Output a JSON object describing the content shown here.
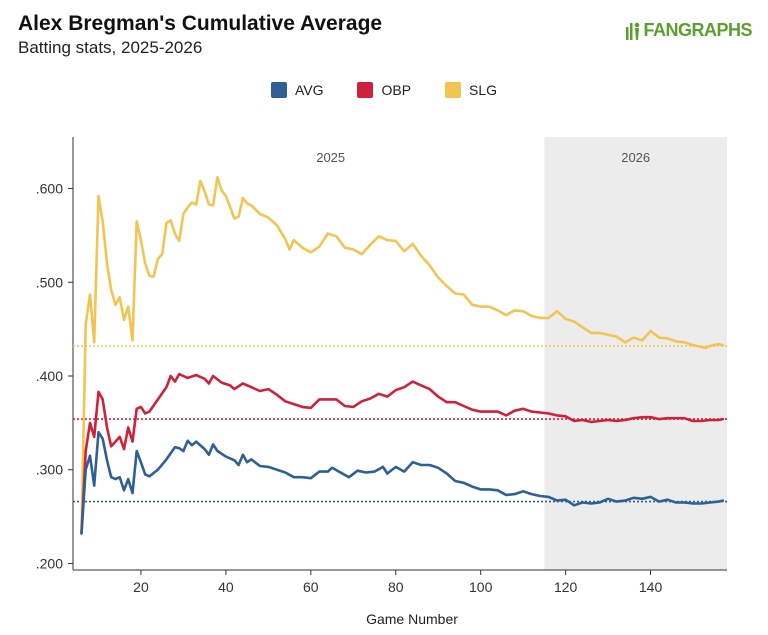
{
  "header": {
    "title": "Alex Bregman's Cumulative Average",
    "subtitle": "Batting stats, 2025-2026",
    "brand": "FANGRAPHS"
  },
  "colors": {
    "AVG": "#2e6095",
    "OBP": "#d0213a",
    "SLG": "#f4c452",
    "season_shade": "#ececec",
    "axis": "#333333",
    "text": "#444444"
  },
  "chart_data": {
    "type": "line",
    "title": "Alex Bregman's Cumulative Average",
    "subtitle": "Batting stats, 2025-2026",
    "xlabel": "Game Number",
    "ylabel": "",
    "xlim": [
      4,
      158
    ],
    "ylim": [
      0.193,
      0.655
    ],
    "x_ticks": [
      20,
      40,
      60,
      80,
      100,
      120,
      140
    ],
    "y_ticks": [
      0.2,
      0.3,
      0.4,
      0.5,
      0.6
    ],
    "y_tick_labels": [
      ".200",
      ".300",
      ".400",
      ".500",
      ".600"
    ],
    "season_labels": [
      {
        "label": "2025",
        "from": 4,
        "to": 115
      },
      {
        "label": "2026",
        "from": 115,
        "to": 157
      }
    ],
    "legend": [
      "AVG",
      "OBP",
      "SLG"
    ],
    "legend_position": "top-center",
    "series": [
      {
        "name": "AVG",
        "reference": 0.266,
        "points": [
          [
            6,
            0.232
          ],
          [
            7,
            0.3
          ],
          [
            8,
            0.315
          ],
          [
            9,
            0.283
          ],
          [
            10,
            0.34
          ],
          [
            11,
            0.333
          ],
          [
            12,
            0.31
          ],
          [
            13,
            0.292
          ],
          [
            14,
            0.29
          ],
          [
            15,
            0.292
          ],
          [
            16,
            0.278
          ],
          [
            17,
            0.29
          ],
          [
            18,
            0.275
          ],
          [
            19,
            0.32
          ],
          [
            20,
            0.308
          ],
          [
            21,
            0.295
          ],
          [
            22,
            0.293
          ],
          [
            24,
            0.3
          ],
          [
            26,
            0.311
          ],
          [
            28,
            0.324
          ],
          [
            29,
            0.323
          ],
          [
            30,
            0.32
          ],
          [
            31,
            0.331
          ],
          [
            32,
            0.326
          ],
          [
            33,
            0.33
          ],
          [
            35,
            0.322
          ],
          [
            36,
            0.316
          ],
          [
            37,
            0.327
          ],
          [
            38,
            0.32
          ],
          [
            40,
            0.314
          ],
          [
            42,
            0.31
          ],
          [
            43,
            0.305
          ],
          [
            44,
            0.316
          ],
          [
            45,
            0.308
          ],
          [
            46,
            0.311
          ],
          [
            48,
            0.304
          ],
          [
            50,
            0.303
          ],
          [
            52,
            0.3
          ],
          [
            54,
            0.297
          ],
          [
            56,
            0.292
          ],
          [
            58,
            0.292
          ],
          [
            60,
            0.291
          ],
          [
            62,
            0.298
          ],
          [
            64,
            0.298
          ],
          [
            65,
            0.302
          ],
          [
            67,
            0.297
          ],
          [
            69,
            0.292
          ],
          [
            71,
            0.299
          ],
          [
            73,
            0.297
          ],
          [
            75,
            0.298
          ],
          [
            77,
            0.303
          ],
          [
            78,
            0.296
          ],
          [
            80,
            0.303
          ],
          [
            82,
            0.298
          ],
          [
            84,
            0.308
          ],
          [
            86,
            0.305
          ],
          [
            88,
            0.305
          ],
          [
            90,
            0.302
          ],
          [
            92,
            0.296
          ],
          [
            94,
            0.288
          ],
          [
            96,
            0.286
          ],
          [
            98,
            0.282
          ],
          [
            100,
            0.279
          ],
          [
            102,
            0.279
          ],
          [
            104,
            0.278
          ],
          [
            106,
            0.273
          ],
          [
            108,
            0.274
          ],
          [
            110,
            0.277
          ],
          [
            112,
            0.274
          ],
          [
            114,
            0.272
          ],
          [
            116,
            0.271
          ],
          [
            118,
            0.267
          ],
          [
            120,
            0.268
          ],
          [
            122,
            0.262
          ],
          [
            124,
            0.265
          ],
          [
            126,
            0.264
          ],
          [
            128,
            0.265
          ],
          [
            130,
            0.269
          ],
          [
            132,
            0.266
          ],
          [
            134,
            0.267
          ],
          [
            136,
            0.27
          ],
          [
            138,
            0.269
          ],
          [
            140,
            0.271
          ],
          [
            142,
            0.266
          ],
          [
            144,
            0.268
          ],
          [
            146,
            0.265
          ],
          [
            148,
            0.265
          ],
          [
            150,
            0.264
          ],
          [
            152,
            0.264
          ],
          [
            154,
            0.265
          ],
          [
            156,
            0.266
          ],
          [
            157,
            0.267
          ]
        ]
      },
      {
        "name": "OBP",
        "reference": 0.354,
        "points": [
          [
            6,
            0.232
          ],
          [
            7,
            0.32
          ],
          [
            8,
            0.35
          ],
          [
            9,
            0.335
          ],
          [
            10,
            0.383
          ],
          [
            11,
            0.375
          ],
          [
            12,
            0.345
          ],
          [
            13,
            0.325
          ],
          [
            14,
            0.33
          ],
          [
            15,
            0.335
          ],
          [
            16,
            0.322
          ],
          [
            17,
            0.345
          ],
          [
            18,
            0.33
          ],
          [
            19,
            0.365
          ],
          [
            20,
            0.367
          ],
          [
            21,
            0.36
          ],
          [
            22,
            0.362
          ],
          [
            24,
            0.375
          ],
          [
            26,
            0.388
          ],
          [
            27,
            0.4
          ],
          [
            28,
            0.394
          ],
          [
            29,
            0.402
          ],
          [
            30,
            0.4
          ],
          [
            31,
            0.398
          ],
          [
            33,
            0.401
          ],
          [
            35,
            0.397
          ],
          [
            36,
            0.392
          ],
          [
            37,
            0.4
          ],
          [
            39,
            0.393
          ],
          [
            41,
            0.39
          ],
          [
            42,
            0.386
          ],
          [
            44,
            0.392
          ],
          [
            46,
            0.388
          ],
          [
            48,
            0.384
          ],
          [
            50,
            0.386
          ],
          [
            52,
            0.38
          ],
          [
            54,
            0.373
          ],
          [
            56,
            0.37
          ],
          [
            58,
            0.367
          ],
          [
            60,
            0.366
          ],
          [
            62,
            0.375
          ],
          [
            64,
            0.375
          ],
          [
            66,
            0.375
          ],
          [
            68,
            0.368
          ],
          [
            70,
            0.367
          ],
          [
            72,
            0.373
          ],
          [
            74,
            0.376
          ],
          [
            76,
            0.381
          ],
          [
            78,
            0.378
          ],
          [
            80,
            0.385
          ],
          [
            82,
            0.388
          ],
          [
            84,
            0.394
          ],
          [
            86,
            0.39
          ],
          [
            88,
            0.386
          ],
          [
            90,
            0.378
          ],
          [
            92,
            0.372
          ],
          [
            94,
            0.372
          ],
          [
            96,
            0.368
          ],
          [
            98,
            0.364
          ],
          [
            100,
            0.362
          ],
          [
            102,
            0.362
          ],
          [
            104,
            0.362
          ],
          [
            106,
            0.358
          ],
          [
            108,
            0.363
          ],
          [
            110,
            0.365
          ],
          [
            112,
            0.362
          ],
          [
            114,
            0.361
          ],
          [
            116,
            0.36
          ],
          [
            118,
            0.358
          ],
          [
            120,
            0.357
          ],
          [
            122,
            0.352
          ],
          [
            124,
            0.353
          ],
          [
            126,
            0.351
          ],
          [
            128,
            0.352
          ],
          [
            130,
            0.353
          ],
          [
            132,
            0.352
          ],
          [
            134,
            0.353
          ],
          [
            136,
            0.355
          ],
          [
            138,
            0.356
          ],
          [
            140,
            0.356
          ],
          [
            142,
            0.354
          ],
          [
            144,
            0.355
          ],
          [
            146,
            0.355
          ],
          [
            148,
            0.355
          ],
          [
            150,
            0.352
          ],
          [
            152,
            0.352
          ],
          [
            154,
            0.353
          ],
          [
            156,
            0.353
          ],
          [
            157,
            0.354
          ]
        ]
      },
      {
        "name": "SLG",
        "reference": 0.432,
        "points": [
          [
            6,
            0.232
          ],
          [
            7,
            0.455
          ],
          [
            8,
            0.487
          ],
          [
            9,
            0.436
          ],
          [
            10,
            0.592
          ],
          [
            11,
            0.565
          ],
          [
            12,
            0.52
          ],
          [
            13,
            0.492
          ],
          [
            14,
            0.476
          ],
          [
            15,
            0.484
          ],
          [
            16,
            0.46
          ],
          [
            17,
            0.474
          ],
          [
            18,
            0.438
          ],
          [
            19,
            0.565
          ],
          [
            20,
            0.545
          ],
          [
            21,
            0.52
          ],
          [
            22,
            0.507
          ],
          [
            23,
            0.506
          ],
          [
            24,
            0.525
          ],
          [
            25,
            0.53
          ],
          [
            26,
            0.563
          ],
          [
            27,
            0.566
          ],
          [
            28,
            0.552
          ],
          [
            29,
            0.544
          ],
          [
            30,
            0.573
          ],
          [
            31,
            0.58
          ],
          [
            32,
            0.585
          ],
          [
            33,
            0.583
          ],
          [
            34,
            0.608
          ],
          [
            35,
            0.597
          ],
          [
            36,
            0.583
          ],
          [
            37,
            0.582
          ],
          [
            38,
            0.612
          ],
          [
            39,
            0.598
          ],
          [
            40,
            0.592
          ],
          [
            42,
            0.568
          ],
          [
            43,
            0.57
          ],
          [
            44,
            0.59
          ],
          [
            45,
            0.584
          ],
          [
            46,
            0.582
          ],
          [
            48,
            0.573
          ],
          [
            50,
            0.569
          ],
          [
            52,
            0.561
          ],
          [
            54,
            0.546
          ],
          [
            55,
            0.535
          ],
          [
            56,
            0.545
          ],
          [
            58,
            0.537
          ],
          [
            60,
            0.532
          ],
          [
            62,
            0.538
          ],
          [
            64,
            0.552
          ],
          [
            66,
            0.549
          ],
          [
            68,
            0.537
          ],
          [
            70,
            0.535
          ],
          [
            72,
            0.53
          ],
          [
            74,
            0.54
          ],
          [
            76,
            0.549
          ],
          [
            78,
            0.545
          ],
          [
            80,
            0.544
          ],
          [
            82,
            0.533
          ],
          [
            84,
            0.541
          ],
          [
            86,
            0.528
          ],
          [
            88,
            0.518
          ],
          [
            90,
            0.505
          ],
          [
            92,
            0.496
          ],
          [
            94,
            0.488
          ],
          [
            96,
            0.487
          ],
          [
            98,
            0.476
          ],
          [
            100,
            0.474
          ],
          [
            102,
            0.474
          ],
          [
            104,
            0.47
          ],
          [
            106,
            0.465
          ],
          [
            108,
            0.47
          ],
          [
            110,
            0.469
          ],
          [
            112,
            0.464
          ],
          [
            114,
            0.462
          ],
          [
            116,
            0.462
          ],
          [
            118,
            0.469
          ],
          [
            120,
            0.461
          ],
          [
            122,
            0.458
          ],
          [
            124,
            0.452
          ],
          [
            126,
            0.446
          ],
          [
            128,
            0.446
          ],
          [
            130,
            0.444
          ],
          [
            132,
            0.442
          ],
          [
            134,
            0.436
          ],
          [
            136,
            0.441
          ],
          [
            138,
            0.438
          ],
          [
            140,
            0.448
          ],
          [
            142,
            0.441
          ],
          [
            144,
            0.44
          ],
          [
            146,
            0.437
          ],
          [
            148,
            0.436
          ],
          [
            150,
            0.433
          ],
          [
            152,
            0.431
          ],
          [
            153,
            0.43
          ],
          [
            154,
            0.432
          ],
          [
            156,
            0.434
          ],
          [
            157,
            0.433
          ]
        ]
      }
    ]
  }
}
